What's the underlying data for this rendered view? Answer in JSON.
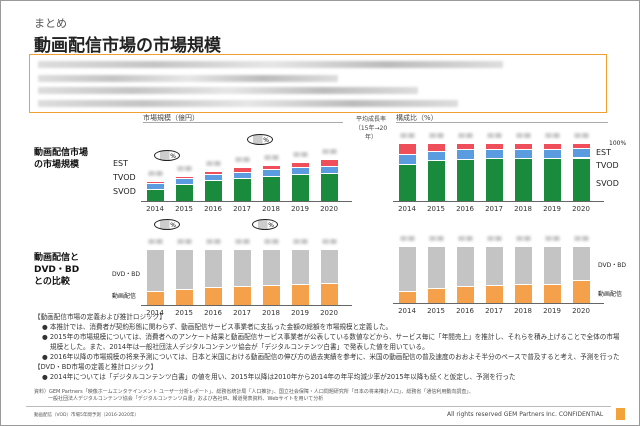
{
  "slide": {
    "kicker": "まとめ",
    "title": "動画配信市場の市場規模",
    "headers": {
      "market_size": "市場規模（億円）",
      "cagr": "平均成長率",
      "cagr_period": "（15年→20年）",
      "share": "構成比（%）"
    },
    "row_labels": {
      "row1": [
        "動画配信市場",
        "の市場規模"
      ],
      "row2": [
        "動画配信と",
        "DVD・BD",
        "との比較"
      ]
    },
    "pct_symbol": "%",
    "label_100": "100%",
    "notes": {
      "h1": "【動画配信市場の定義および推計ロジック】",
      "b1": "本推計では、消費者が契約形態に関わらず、動画配信サービス事業者に支払った金額の総額を市場規模と定義した。",
      "b2": "2015年の市場規模については、消費者へのアンケート結果と動画配信サービス事業者が公表している数値などから、サービス毎に「年間売上」を推計し、それらを積み上げることで全体の市場規模とした。また、2014年は一般社団法人デジタルコンテンツ協会が「デジタルコンテンツ白書」で発表した値を用いている。",
      "b3": "2016年以降の市場規模の将来予測については、日本と米国における動画配信の伸び方の過去実績を参考に、米国の動画配信の普及速度のおおよそ半分のペースで普及すると考え、予測を行った",
      "h2": "【DVD・BD市場の定義と推計ロジック】",
      "b4": "2014年については「デジタルコンテンツ白書」の値を用い、2015年以降は2010年から2014年の年平均減少率が2015年以降も続くと仮定し、予測を行った"
    },
    "source": [
      "資料）GEM Partners「映像ホームエンタテインメント ユーザー分析レポート」、総務省統計局「人口推計」、国立社会保障・人口問題研究所「日本の将来推計人口」、総務省「通信利用動向調査」、",
      "一般社団法人デジタルコンテンツ協会「デジタルコンテンツ白書」および各社IR、報道発表資料、Webサイトを用いて分析"
    ],
    "footer_left": "動画配信（VOD）市場5年間予測（2016-2020年）",
    "footer_right": "All rights reserved GEM Partners Inc. CONFIDENTIAL"
  },
  "colors": {
    "svod": "#1a8a3c",
    "tvod": "#5b9be0",
    "est": "#ef4f5a",
    "dvd": "#c4c4c4",
    "vod": "#f5a04a",
    "accent": "#f0a030"
  },
  "chart_data": [
    {
      "type": "bar",
      "stacked": true,
      "title": "市場規模（億円）",
      "categories": [
        "2014",
        "2015",
        "2016",
        "2017",
        "2018",
        "2019",
        "2020"
      ],
      "series": [
        {
          "name": "SVOD",
          "values": [
            12,
            17,
            21,
            23,
            25,
            27,
            28
          ]
        },
        {
          "name": "TVOD",
          "values": [
            6,
            6,
            6,
            6,
            7,
            7,
            7
          ]
        },
        {
          "name": "EST",
          "values": [
            2,
            2,
            3,
            5,
            4,
            5,
            7
          ]
        }
      ],
      "note": "values blurred in original; relative heights"
    },
    {
      "type": "bar",
      "stacked": true,
      "title": "構成比（%）",
      "categories": [
        "2014",
        "2015",
        "2016",
        "2017",
        "2018",
        "2019",
        "2020"
      ],
      "series": [
        {
          "name": "SVOD",
          "values": [
            64,
            70,
            73,
            74,
            74,
            74,
            75
          ]
        },
        {
          "name": "TVOD",
          "values": [
            17,
            16,
            16,
            15,
            15,
            15,
            16
          ]
        },
        {
          "name": "EST",
          "values": [
            19,
            14,
            11,
            11,
            11,
            11,
            9
          ]
        }
      ],
      "ylim": [
        0,
        100
      ]
    },
    {
      "type": "bar",
      "stacked": true,
      "categories": [
        "2014",
        "2015",
        "2016",
        "2017",
        "2018",
        "2019",
        "2020"
      ],
      "series": [
        {
          "name": "動画配信",
          "values": [
            14,
            16,
            18,
            19,
            20,
            21,
            22
          ]
        },
        {
          "name": "DVD・BD",
          "values": [
            42,
            40,
            38,
            37,
            36,
            35,
            34
          ]
        }
      ]
    },
    {
      "type": "bar",
      "stacked": true,
      "categories": [
        "2014",
        "2015",
        "2016",
        "2017",
        "2018",
        "2019",
        "2020"
      ],
      "series": [
        {
          "name": "動画配信",
          "values": [
            21,
            26,
            30,
            32,
            33,
            34,
            40
          ]
        },
        {
          "name": "DVD・BD",
          "values": [
            79,
            74,
            70,
            68,
            67,
            66,
            60
          ]
        }
      ],
      "ylim": [
        0,
        100
      ]
    }
  ]
}
